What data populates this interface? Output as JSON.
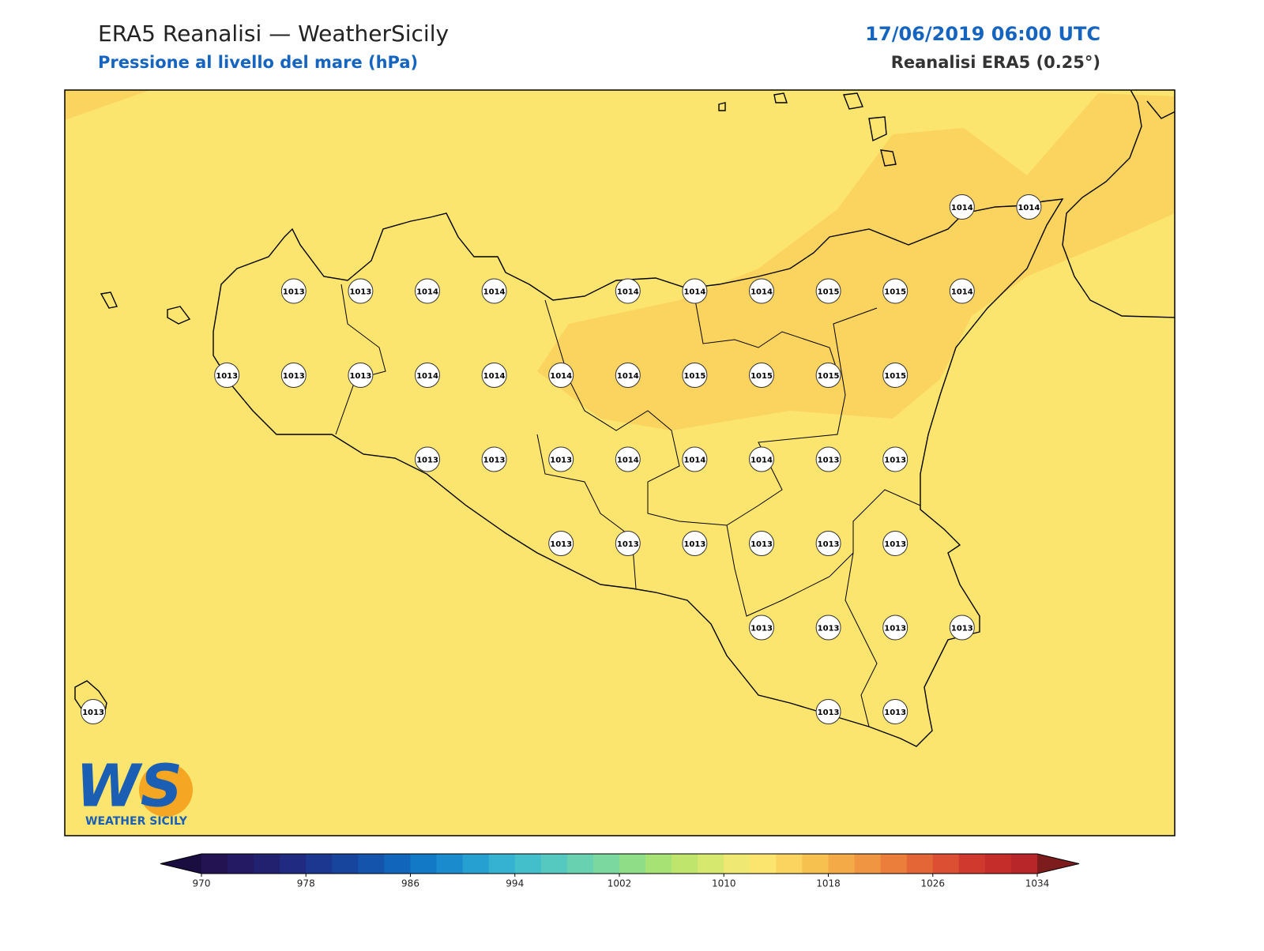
{
  "header": {
    "title": "ERA5 Reanalisi — WeatherSicily",
    "subtitle": "Pressione al livello del mare (hPa)",
    "datetime": "17/06/2019 06:00 UTC",
    "source": "Reanalisi ERA5 (0.25°)"
  },
  "stations": {
    "rows": [
      [
        null,
        null,
        null,
        null,
        null,
        null,
        null,
        null,
        null,
        null,
        null,
        null,
        null,
        1014,
        1014
      ],
      [
        null,
        null,
        null,
        1013,
        1013,
        1014,
        1014,
        null,
        1014,
        1014,
        1014,
        1015,
        1015,
        1014,
        null
      ],
      [
        null,
        null,
        1013,
        1013,
        1013,
        1014,
        1014,
        1014,
        1014,
        1015,
        1015,
        1015,
        1015,
        null,
        null
      ],
      [
        null,
        null,
        null,
        null,
        null,
        1013,
        1013,
        1013,
        1014,
        1014,
        1014,
        1013,
        1013,
        null,
        null
      ],
      [
        null,
        null,
        null,
        null,
        null,
        null,
        null,
        1013,
        1013,
        1013,
        1013,
        1013,
        1013,
        null,
        null
      ],
      [
        null,
        null,
        null,
        null,
        null,
        null,
        null,
        null,
        null,
        null,
        1013,
        1013,
        1013,
        1013,
        null
      ],
      [
        1013,
        null,
        null,
        null,
        null,
        null,
        null,
        null,
        null,
        null,
        null,
        1013,
        1013,
        null,
        null
      ]
    ]
  },
  "colorbar": {
    "range": [
      970,
      1034
    ],
    "ticks": [
      970,
      978,
      986,
      994,
      1002,
      1010,
      1018,
      1026,
      1034
    ],
    "colors": [
      "#231352",
      "#241a63",
      "#22216f",
      "#1f2a80",
      "#1b378f",
      "#17459e",
      "#1454ac",
      "#1166bb",
      "#1279c7",
      "#1a8ccd",
      "#269fd1",
      "#35b1d1",
      "#43bfcb",
      "#55c9bf",
      "#67d1b0",
      "#7bd89e",
      "#90dd88",
      "#a7e275",
      "#bfe56c",
      "#d6e96e",
      "#efe873",
      "#fce56f",
      "#fbd35f",
      "#f7c150",
      "#f4aa47",
      "#f09541",
      "#eb7e3b",
      "#e46637",
      "#dc4f33",
      "#d03a2e",
      "#c42d2a",
      "#b8262a"
    ],
    "under_color": "#1a0d40",
    "over_color": "#7d1c1c"
  },
  "logo": {
    "mark": "WS",
    "caption": "WEATHER SICILY"
  }
}
